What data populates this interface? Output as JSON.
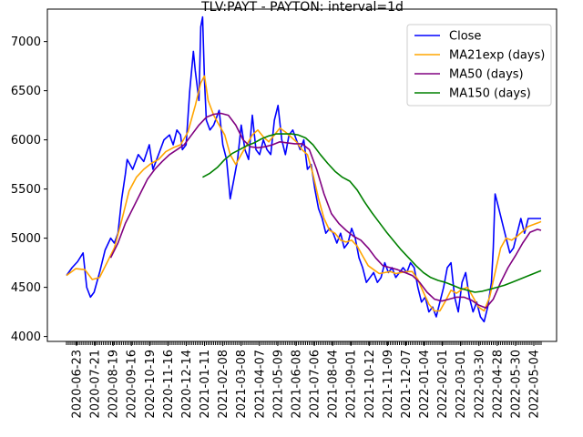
{
  "chart_data": {
    "type": "line",
    "title": "TLV:PAYT - PAYTON: interval=1d",
    "xlabel": "",
    "ylabel": "",
    "x_ticks": [
      "2020-06-23",
      "2020-07-21",
      "2020-08-19",
      "2020-09-16",
      "2020-10-19",
      "2020-11-16",
      "2020-12-14",
      "2021-01-11",
      "2021-02-08",
      "2021-03-08",
      "2021-04-07",
      "2021-05-09",
      "2021-06-08",
      "2021-07-06",
      "2021-08-04",
      "2021-09-01",
      "2021-10-12",
      "2021-11-09",
      "2021-12-07",
      "2022-01-04",
      "2022-02-01",
      "2022-03-01",
      "2022-03-30",
      "2022-04-28",
      "2022-05-30",
      "2022-05-04"
    ],
    "y_ticks": [
      4000,
      4500,
      5000,
      5500,
      6000,
      6500,
      7000
    ],
    "ylim": [
      3950,
      7330
    ],
    "grid": false,
    "legend_position": "top-right",
    "series": [
      {
        "name": "Close",
        "color": "#0000ff",
        "values": [
          [
            0,
            4620
          ],
          [
            3,
            4700
          ],
          [
            6,
            4760
          ],
          [
            9,
            4850
          ],
          [
            11,
            4500
          ],
          [
            13,
            4400
          ],
          [
            15,
            4450
          ],
          [
            18,
            4650
          ],
          [
            21,
            4880
          ],
          [
            24,
            5000
          ],
          [
            26,
            4950
          ],
          [
            28,
            5050
          ],
          [
            30,
            5400
          ],
          [
            32,
            5650
          ],
          [
            33,
            5800
          ],
          [
            36,
            5700
          ],
          [
            39,
            5850
          ],
          [
            42,
            5780
          ],
          [
            45,
            5950
          ],
          [
            47,
            5700
          ],
          [
            50,
            5850
          ],
          [
            53,
            6000
          ],
          [
            56,
            6050
          ],
          [
            58,
            5950
          ],
          [
            60,
            6100
          ],
          [
            62,
            6050
          ],
          [
            63,
            5900
          ],
          [
            65,
            5950
          ],
          [
            67,
            6500
          ],
          [
            69,
            6900
          ],
          [
            70,
            6700
          ],
          [
            72,
            6400
          ],
          [
            73,
            7150
          ],
          [
            74,
            7250
          ],
          [
            75,
            6600
          ],
          [
            76,
            6200
          ],
          [
            78,
            6100
          ],
          [
            80,
            6150
          ],
          [
            83,
            6300
          ],
          [
            85,
            5950
          ],
          [
            87,
            5800
          ],
          [
            88,
            5600
          ],
          [
            89,
            5400
          ],
          [
            91,
            5600
          ],
          [
            93,
            5800
          ],
          [
            95,
            6150
          ],
          [
            97,
            5900
          ],
          [
            99,
            5800
          ],
          [
            101,
            6250
          ],
          [
            103,
            5900
          ],
          [
            105,
            5850
          ],
          [
            107,
            6000
          ],
          [
            109,
            5900
          ],
          [
            111,
            5850
          ],
          [
            113,
            6200
          ],
          [
            115,
            6350
          ],
          [
            117,
            6000
          ],
          [
            119,
            5850
          ],
          [
            121,
            6050
          ],
          [
            123,
            6100
          ],
          [
            125,
            6000
          ],
          [
            127,
            5900
          ],
          [
            129,
            6000
          ],
          [
            131,
            5700
          ],
          [
            133,
            5750
          ],
          [
            135,
            5500
          ],
          [
            137,
            5300
          ],
          [
            139,
            5200
          ],
          [
            141,
            5050
          ],
          [
            143,
            5100
          ],
          [
            145,
            5050
          ],
          [
            147,
            4950
          ],
          [
            149,
            5050
          ],
          [
            151,
            4900
          ],
          [
            153,
            4950
          ],
          [
            155,
            5100
          ],
          [
            157,
            5000
          ],
          [
            159,
            4800
          ],
          [
            161,
            4700
          ],
          [
            163,
            4550
          ],
          [
            165,
            4600
          ],
          [
            167,
            4650
          ],
          [
            169,
            4550
          ],
          [
            171,
            4600
          ],
          [
            173,
            4750
          ],
          [
            175,
            4650
          ],
          [
            177,
            4700
          ],
          [
            179,
            4600
          ],
          [
            181,
            4650
          ],
          [
            183,
            4700
          ],
          [
            185,
            4650
          ],
          [
            187,
            4750
          ],
          [
            189,
            4700
          ],
          [
            191,
            4500
          ],
          [
            193,
            4350
          ],
          [
            195,
            4400
          ],
          [
            197,
            4250
          ],
          [
            199,
            4300
          ],
          [
            201,
            4200
          ],
          [
            203,
            4350
          ],
          [
            205,
            4500
          ],
          [
            207,
            4700
          ],
          [
            209,
            4750
          ],
          [
            211,
            4400
          ],
          [
            213,
            4250
          ],
          [
            215,
            4550
          ],
          [
            217,
            4650
          ],
          [
            219,
            4400
          ],
          [
            221,
            4250
          ],
          [
            223,
            4350
          ],
          [
            225,
            4200
          ],
          [
            227,
            4150
          ],
          [
            229,
            4300
          ],
          [
            231,
            4550
          ],
          [
            232,
            4900
          ],
          [
            233,
            5450
          ],
          [
            235,
            5300
          ],
          [
            237,
            5150
          ],
          [
            239,
            5000
          ],
          [
            241,
            4850
          ],
          [
            243,
            4900
          ],
          [
            245,
            5050
          ],
          [
            247,
            5200
          ],
          [
            249,
            5050
          ],
          [
            251,
            5200
          ],
          [
            253,
            5200
          ],
          [
            255,
            5200
          ],
          [
            257,
            5200
          ],
          [
            258,
            5200
          ]
        ]
      },
      {
        "name": "MA21exp (days)",
        "color": "#ffa500",
        "values": [
          [
            0,
            4620
          ],
          [
            5,
            4690
          ],
          [
            10,
            4680
          ],
          [
            14,
            4580
          ],
          [
            18,
            4600
          ],
          [
            22,
            4750
          ],
          [
            26,
            4900
          ],
          [
            30,
            5180
          ],
          [
            34,
            5480
          ],
          [
            38,
            5620
          ],
          [
            42,
            5700
          ],
          [
            46,
            5760
          ],
          [
            50,
            5800
          ],
          [
            54,
            5880
          ],
          [
            58,
            5920
          ],
          [
            62,
            5950
          ],
          [
            66,
            6080
          ],
          [
            70,
            6350
          ],
          [
            73,
            6580
          ],
          [
            75,
            6650
          ],
          [
            77,
            6400
          ],
          [
            80,
            6250
          ],
          [
            83,
            6150
          ],
          [
            86,
            6050
          ],
          [
            89,
            5850
          ],
          [
            92,
            5750
          ],
          [
            95,
            5850
          ],
          [
            98,
            5950
          ],
          [
            101,
            6050
          ],
          [
            104,
            6100
          ],
          [
            107,
            6030
          ],
          [
            110,
            5980
          ],
          [
            113,
            6050
          ],
          [
            116,
            6120
          ],
          [
            119,
            6080
          ],
          [
            122,
            6030
          ],
          [
            125,
            5980
          ],
          [
            128,
            5900
          ],
          [
            131,
            5850
          ],
          [
            134,
            5650
          ],
          [
            137,
            5400
          ],
          [
            140,
            5200
          ],
          [
            143,
            5080
          ],
          [
            146,
            5050
          ],
          [
            149,
            4980
          ],
          [
            152,
            4960
          ],
          [
            155,
            4980
          ],
          [
            158,
            4920
          ],
          [
            161,
            4820
          ],
          [
            164,
            4720
          ],
          [
            167,
            4680
          ],
          [
            170,
            4640
          ],
          [
            173,
            4650
          ],
          [
            176,
            4660
          ],
          [
            179,
            4640
          ],
          [
            182,
            4650
          ],
          [
            185,
            4660
          ],
          [
            188,
            4660
          ],
          [
            191,
            4580
          ],
          [
            194,
            4450
          ],
          [
            197,
            4330
          ],
          [
            200,
            4260
          ],
          [
            203,
            4260
          ],
          [
            206,
            4360
          ],
          [
            209,
            4470
          ],
          [
            212,
            4440
          ],
          [
            215,
            4480
          ],
          [
            218,
            4500
          ],
          [
            221,
            4400
          ],
          [
            224,
            4300
          ],
          [
            227,
            4260
          ],
          [
            230,
            4400
          ],
          [
            233,
            4650
          ],
          [
            236,
            4900
          ],
          [
            239,
            5000
          ],
          [
            242,
            4980
          ],
          [
            245,
            5020
          ],
          [
            248,
            5070
          ],
          [
            251,
            5120
          ],
          [
            254,
            5140
          ],
          [
            257,
            5160
          ],
          [
            258,
            5170
          ]
        ]
      },
      {
        "name": "MA50 (days)",
        "color": "#800080",
        "values": [
          [
            24,
            4800
          ],
          [
            28,
            4950
          ],
          [
            32,
            5150
          ],
          [
            36,
            5300
          ],
          [
            40,
            5450
          ],
          [
            44,
            5600
          ],
          [
            48,
            5700
          ],
          [
            52,
            5780
          ],
          [
            56,
            5850
          ],
          [
            60,
            5900
          ],
          [
            64,
            5950
          ],
          [
            68,
            6050
          ],
          [
            72,
            6150
          ],
          [
            76,
            6230
          ],
          [
            80,
            6260
          ],
          [
            84,
            6270
          ],
          [
            88,
            6250
          ],
          [
            92,
            6150
          ],
          [
            96,
            6000
          ],
          [
            100,
            5930
          ],
          [
            104,
            5920
          ],
          [
            108,
            5930
          ],
          [
            112,
            5950
          ],
          [
            116,
            5980
          ],
          [
            120,
            5970
          ],
          [
            124,
            5960
          ],
          [
            128,
            5960
          ],
          [
            132,
            5900
          ],
          [
            136,
            5700
          ],
          [
            140,
            5450
          ],
          [
            144,
            5250
          ],
          [
            148,
            5150
          ],
          [
            152,
            5080
          ],
          [
            156,
            5020
          ],
          [
            160,
            4980
          ],
          [
            164,
            4900
          ],
          [
            168,
            4800
          ],
          [
            172,
            4720
          ],
          [
            176,
            4700
          ],
          [
            180,
            4680
          ],
          [
            184,
            4650
          ],
          [
            188,
            4620
          ],
          [
            192,
            4550
          ],
          [
            196,
            4450
          ],
          [
            200,
            4380
          ],
          [
            204,
            4360
          ],
          [
            208,
            4380
          ],
          [
            212,
            4400
          ],
          [
            216,
            4400
          ],
          [
            220,
            4370
          ],
          [
            224,
            4320
          ],
          [
            228,
            4290
          ],
          [
            232,
            4380
          ],
          [
            236,
            4550
          ],
          [
            240,
            4700
          ],
          [
            244,
            4820
          ],
          [
            248,
            4950
          ],
          [
            252,
            5060
          ],
          [
            256,
            5090
          ],
          [
            258,
            5080
          ]
        ]
      },
      {
        "name": "MA150 (days)",
        "color": "#008000",
        "values": [
          [
            74,
            5620
          ],
          [
            78,
            5660
          ],
          [
            82,
            5720
          ],
          [
            86,
            5800
          ],
          [
            90,
            5860
          ],
          [
            94,
            5900
          ],
          [
            98,
            5940
          ],
          [
            102,
            5970
          ],
          [
            106,
            6010
          ],
          [
            110,
            6040
          ],
          [
            114,
            6060
          ],
          [
            118,
            6060
          ],
          [
            122,
            6060
          ],
          [
            126,
            6050
          ],
          [
            130,
            6020
          ],
          [
            134,
            5950
          ],
          [
            138,
            5850
          ],
          [
            142,
            5760
          ],
          [
            146,
            5680
          ],
          [
            150,
            5620
          ],
          [
            154,
            5580
          ],
          [
            158,
            5490
          ],
          [
            162,
            5370
          ],
          [
            166,
            5260
          ],
          [
            170,
            5160
          ],
          [
            174,
            5060
          ],
          [
            178,
            4970
          ],
          [
            182,
            4880
          ],
          [
            186,
            4800
          ],
          [
            190,
            4720
          ],
          [
            194,
            4650
          ],
          [
            198,
            4600
          ],
          [
            202,
            4570
          ],
          [
            206,
            4550
          ],
          [
            210,
            4520
          ],
          [
            214,
            4490
          ],
          [
            218,
            4470
          ],
          [
            222,
            4450
          ],
          [
            226,
            4460
          ],
          [
            230,
            4480
          ],
          [
            234,
            4500
          ],
          [
            238,
            4520
          ],
          [
            242,
            4550
          ],
          [
            246,
            4580
          ],
          [
            250,
            4610
          ],
          [
            254,
            4640
          ],
          [
            258,
            4670
          ]
        ]
      }
    ]
  }
}
